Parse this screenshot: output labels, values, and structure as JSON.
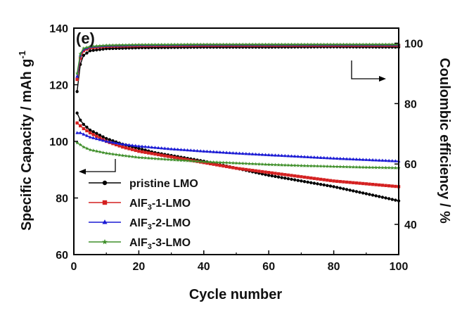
{
  "chart_data": {
    "type": "line",
    "panel_label": "(e)",
    "xlabel": "Cycle number",
    "ylabel_left": "Specific Capacity / mAh g",
    "ylabel_left_sup": "-1",
    "ylabel_right": "Coulombic efficiency / %",
    "xlim": [
      0,
      100
    ],
    "ylim_left": [
      60,
      140
    ],
    "ylim_right": [
      30,
      105
    ],
    "x_ticks": [
      0,
      20,
      40,
      60,
      80,
      100
    ],
    "y_left_ticks": [
      60,
      80,
      100,
      120,
      140
    ],
    "y_right_ticks": [
      40,
      60,
      80,
      100
    ],
    "grid": false,
    "legend_position": "bottom-left",
    "series": [
      {
        "name": "pristine LMO",
        "legend_parts": [
          {
            "t": "pristine LMO",
            "sub": false
          }
        ],
        "color": "#000000",
        "marker": "circle",
        "capacity": [
          [
            1,
            110
          ],
          [
            2,
            107.5
          ],
          [
            3,
            106
          ],
          [
            5,
            104
          ],
          [
            10,
            101
          ],
          [
            15,
            99
          ],
          [
            20,
            97.5
          ],
          [
            25,
            96
          ],
          [
            30,
            95
          ],
          [
            40,
            93
          ],
          [
            50,
            90.5
          ],
          [
            60,
            88
          ],
          [
            70,
            86
          ],
          [
            80,
            84
          ],
          [
            90,
            81.5
          ],
          [
            100,
            79
          ]
        ],
        "efficiency": [
          [
            1,
            84
          ],
          [
            2,
            93
          ],
          [
            3,
            96
          ],
          [
            5,
            97.5
          ],
          [
            10,
            98.2
          ],
          [
            20,
            98.5
          ],
          [
            40,
            98.7
          ],
          [
            60,
            98.7
          ],
          [
            80,
            98.8
          ],
          [
            100,
            98.7
          ]
        ]
      },
      {
        "name": "AlF3-1-LMO",
        "legend_parts": [
          {
            "t": "AlF",
            "sub": false
          },
          {
            "t": "3",
            "sub": true
          },
          {
            "t": "-1-LMO",
            "sub": false
          }
        ],
        "color": "#d42020",
        "marker": "square",
        "capacity": [
          [
            1,
            106.5
          ],
          [
            2,
            105.5
          ],
          [
            3,
            104.5
          ],
          [
            5,
            103
          ],
          [
            10,
            100
          ],
          [
            15,
            98
          ],
          [
            20,
            96.5
          ],
          [
            25,
            95.5
          ],
          [
            30,
            94.5
          ],
          [
            40,
            92.5
          ],
          [
            50,
            90.5
          ],
          [
            60,
            89
          ],
          [
            70,
            87.5
          ],
          [
            80,
            86
          ],
          [
            90,
            85
          ],
          [
            100,
            84
          ]
        ],
        "efficiency": [
          [
            1,
            88
          ],
          [
            2,
            95
          ],
          [
            3,
            97.5
          ],
          [
            5,
            98.5
          ],
          [
            10,
            99
          ],
          [
            20,
            99.2
          ],
          [
            40,
            99.3
          ],
          [
            60,
            99.3
          ],
          [
            80,
            99.3
          ],
          [
            100,
            99.3
          ]
        ]
      },
      {
        "name": "AlF3-2-LMO",
        "legend_parts": [
          {
            "t": "AlF",
            "sub": false
          },
          {
            "t": "3",
            "sub": true
          },
          {
            "t": "-2-LMO",
            "sub": false
          }
        ],
        "color": "#1a1ad4",
        "marker": "triangle",
        "capacity": [
          [
            1,
            103
          ],
          [
            2,
            103
          ],
          [
            3,
            102.5
          ],
          [
            5,
            101.5
          ],
          [
            10,
            100
          ],
          [
            15,
            99
          ],
          [
            20,
            98.3
          ],
          [
            30,
            97.3
          ],
          [
            40,
            96.5
          ],
          [
            50,
            95.8
          ],
          [
            60,
            95.2
          ],
          [
            70,
            94.6
          ],
          [
            80,
            94
          ],
          [
            90,
            93.5
          ],
          [
            100,
            93
          ]
        ],
        "efficiency": [
          [
            1,
            89
          ],
          [
            2,
            96
          ],
          [
            3,
            98
          ],
          [
            5,
            98.8
          ],
          [
            10,
            99.2
          ],
          [
            20,
            99.4
          ],
          [
            40,
            99.5
          ],
          [
            60,
            99.5
          ],
          [
            80,
            99.5
          ],
          [
            100,
            99.5
          ]
        ]
      },
      {
        "name": "AlF3-3-LMO",
        "legend_parts": [
          {
            "t": "AlF",
            "sub": false
          },
          {
            "t": "3",
            "sub": true
          },
          {
            "t": "-3-LMO",
            "sub": false
          }
        ],
        "color": "#3f8f2a",
        "marker": "star",
        "capacity": [
          [
            1,
            99.5
          ],
          [
            2,
            98.8
          ],
          [
            3,
            98
          ],
          [
            5,
            97
          ],
          [
            10,
            95.8
          ],
          [
            15,
            95
          ],
          [
            20,
            94.3
          ],
          [
            30,
            93.5
          ],
          [
            40,
            92.8
          ],
          [
            50,
            92.3
          ],
          [
            60,
            91.8
          ],
          [
            70,
            91.4
          ],
          [
            80,
            91.1
          ],
          [
            90,
            90.8
          ],
          [
            100,
            90.6
          ]
        ],
        "efficiency": [
          [
            1,
            90
          ],
          [
            2,
            96.5
          ],
          [
            3,
            98.3
          ],
          [
            5,
            98.9
          ],
          [
            10,
            99.3
          ],
          [
            20,
            99.5
          ],
          [
            40,
            99.6
          ],
          [
            60,
            99.6
          ],
          [
            80,
            99.6
          ],
          [
            100,
            99.6
          ]
        ]
      }
    ]
  }
}
